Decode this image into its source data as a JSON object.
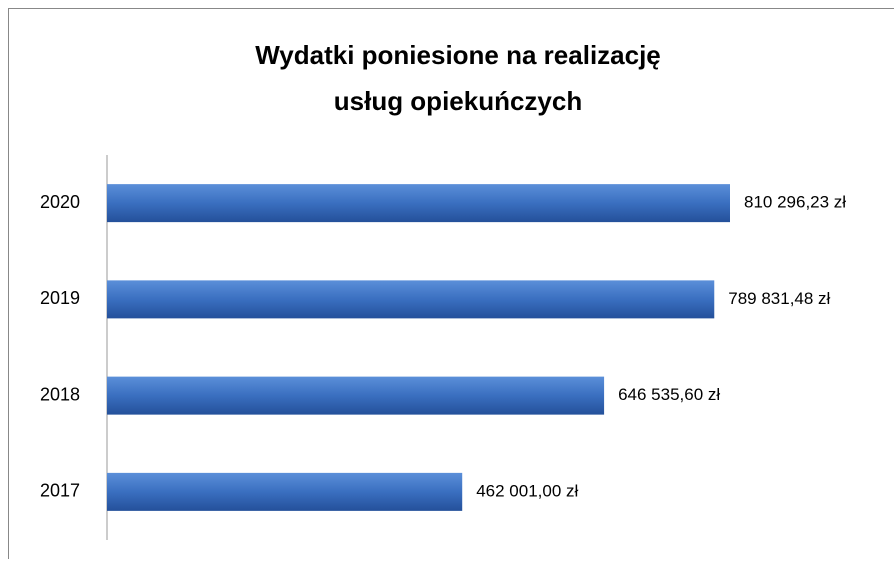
{
  "chart_data": {
    "type": "barh",
    "title": [
      "Wydatki poniesione na realizację",
      "usług opiekuńczych"
    ],
    "categories": [
      "2020",
      "2019",
      "2018",
      "2017"
    ],
    "values": [
      810296.23,
      789831.48,
      646535.6,
      462001.0
    ],
    "value_labels": [
      "810 296,23 zł",
      "789 831,48 zł",
      "646 535,60 zł",
      "462 001,00 zł"
    ],
    "color": "#3a6fc0"
  }
}
